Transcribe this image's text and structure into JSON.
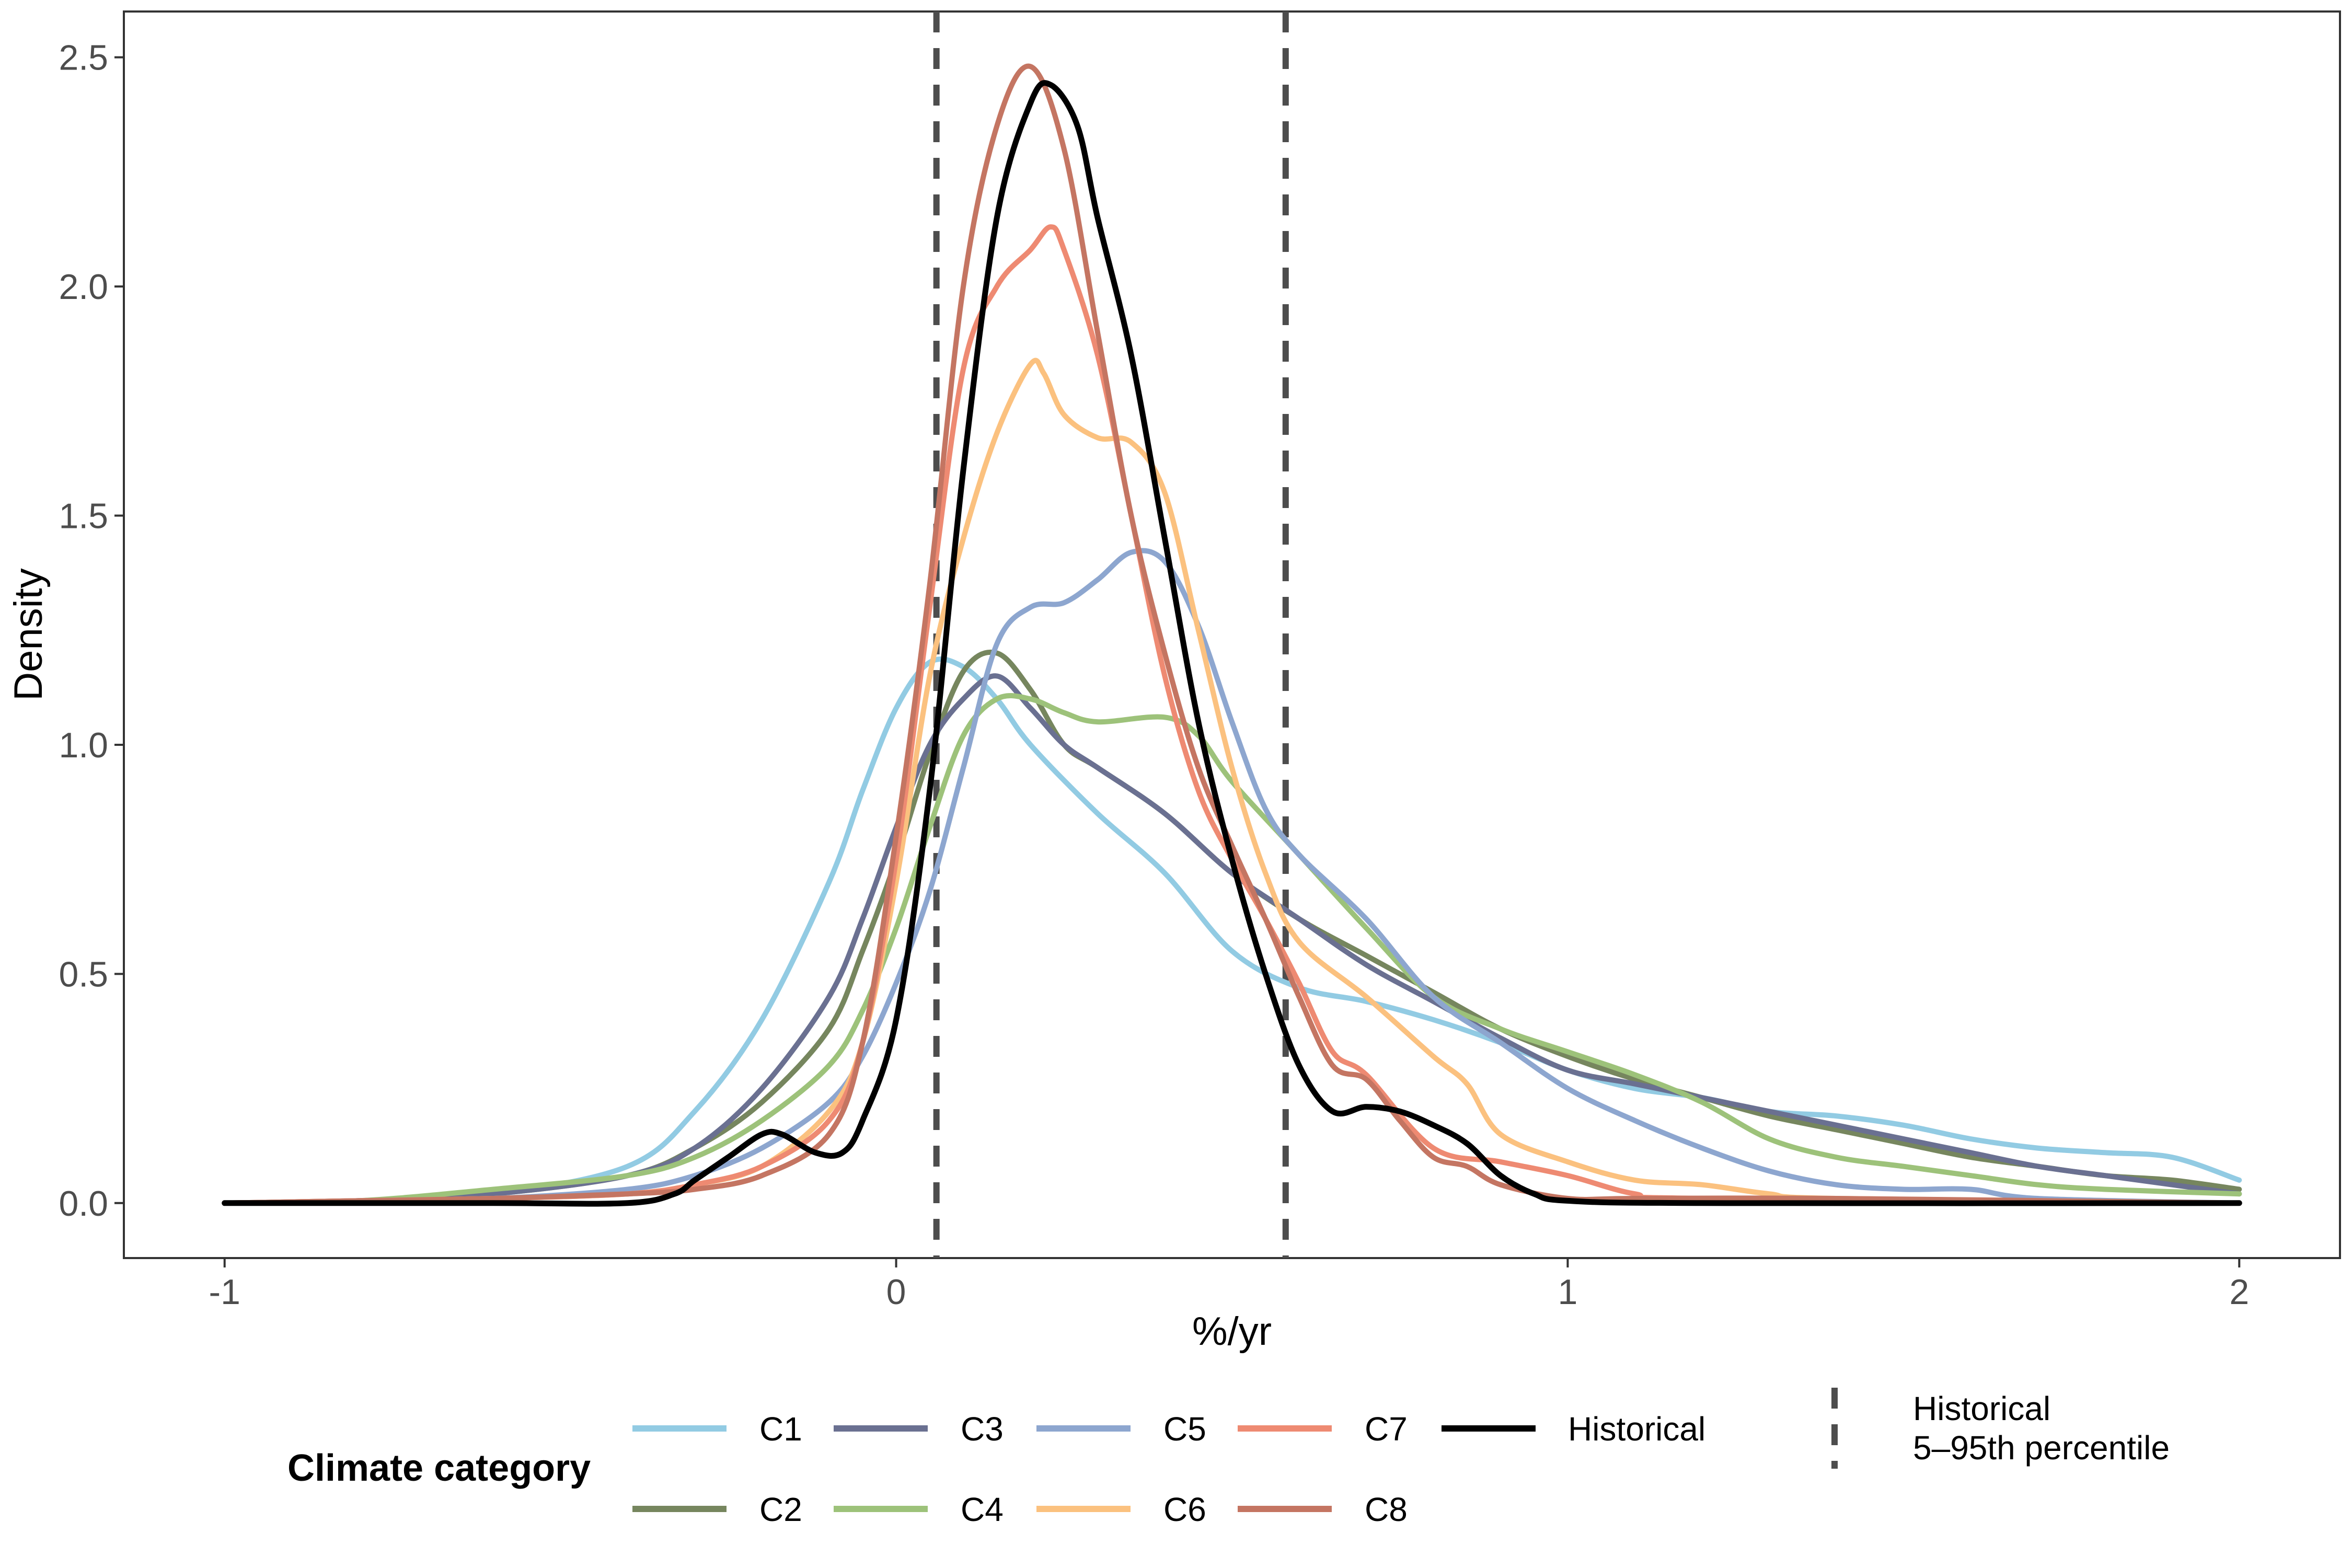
{
  "chart_data": {
    "type": "line",
    "xlabel": "%/yr",
    "ylabel": "Density",
    "xlim": [
      -1.15,
      2.15
    ],
    "ylim": [
      -0.12,
      2.6
    ],
    "x_ticks": [
      -1,
      0,
      1,
      2
    ],
    "x_tick_labels": [
      "-1",
      "0",
      "1",
      "2"
    ],
    "y_ticks": [
      0.0,
      0.5,
      1.0,
      1.5,
      2.0,
      2.5
    ],
    "y_tick_labels": [
      "0.0",
      "0.5",
      "1.0",
      "1.5",
      "2.0",
      "2.5"
    ],
    "grid": false,
    "legend": {
      "position": "bottom",
      "title": "Climate category",
      "historical_label": "Historical",
      "percentile_label_line1": "Historical",
      "percentile_label_line2": "5–95th percentile"
    },
    "reference_lines": [
      {
        "x": 0.06,
        "style": "dashed"
      },
      {
        "x": 0.58,
        "style": "dashed"
      }
    ],
    "series": [
      {
        "name": "C1",
        "color": "#92cbe3",
        "points": [
          [
            -1,
            0
          ],
          [
            -0.8,
            0.005
          ],
          [
            -0.6,
            0.02
          ],
          [
            -0.4,
            0.08
          ],
          [
            -0.3,
            0.2
          ],
          [
            -0.2,
            0.4
          ],
          [
            -0.1,
            0.7
          ],
          [
            -0.05,
            0.9
          ],
          [
            0,
            1.08
          ],
          [
            0.05,
            1.18
          ],
          [
            0.1,
            1.17
          ],
          [
            0.15,
            1.1
          ],
          [
            0.2,
            1.0
          ],
          [
            0.3,
            0.85
          ],
          [
            0.4,
            0.72
          ],
          [
            0.5,
            0.55
          ],
          [
            0.6,
            0.47
          ],
          [
            0.7,
            0.44
          ],
          [
            0.8,
            0.4
          ],
          [
            0.9,
            0.35
          ],
          [
            1.0,
            0.29
          ],
          [
            1.1,
            0.25
          ],
          [
            1.2,
            0.23
          ],
          [
            1.3,
            0.2
          ],
          [
            1.4,
            0.19
          ],
          [
            1.5,
            0.17
          ],
          [
            1.6,
            0.14
          ],
          [
            1.7,
            0.12
          ],
          [
            1.8,
            0.11
          ],
          [
            1.9,
            0.1
          ],
          [
            2.0,
            0.05
          ]
        ]
      },
      {
        "name": "C2",
        "color": "#76865e",
        "points": [
          [
            -1,
            0
          ],
          [
            -0.8,
            0.005
          ],
          [
            -0.6,
            0.02
          ],
          [
            -0.4,
            0.06
          ],
          [
            -0.3,
            0.12
          ],
          [
            -0.2,
            0.22
          ],
          [
            -0.1,
            0.38
          ],
          [
            -0.05,
            0.55
          ],
          [
            0,
            0.75
          ],
          [
            0.05,
            0.98
          ],
          [
            0.1,
            1.16
          ],
          [
            0.15,
            1.2
          ],
          [
            0.2,
            1.12
          ],
          [
            0.25,
            1.0
          ],
          [
            0.3,
            0.95
          ],
          [
            0.4,
            0.85
          ],
          [
            0.5,
            0.72
          ],
          [
            0.6,
            0.62
          ],
          [
            0.7,
            0.54
          ],
          [
            0.8,
            0.46
          ],
          [
            0.9,
            0.38
          ],
          [
            1.0,
            0.32
          ],
          [
            1.1,
            0.27
          ],
          [
            1.2,
            0.23
          ],
          [
            1.3,
            0.19
          ],
          [
            1.4,
            0.16
          ],
          [
            1.5,
            0.13
          ],
          [
            1.6,
            0.1
          ],
          [
            1.7,
            0.08
          ],
          [
            1.8,
            0.06
          ],
          [
            1.9,
            0.05
          ],
          [
            2.0,
            0.03
          ]
        ]
      },
      {
        "name": "C3",
        "color": "#6a7091",
        "points": [
          [
            -1,
            0
          ],
          [
            -0.8,
            0.005
          ],
          [
            -0.6,
            0.02
          ],
          [
            -0.4,
            0.06
          ],
          [
            -0.3,
            0.12
          ],
          [
            -0.2,
            0.25
          ],
          [
            -0.1,
            0.45
          ],
          [
            -0.05,
            0.62
          ],
          [
            0,
            0.82
          ],
          [
            0.05,
            1.0
          ],
          [
            0.1,
            1.1
          ],
          [
            0.15,
            1.15
          ],
          [
            0.2,
            1.08
          ],
          [
            0.25,
            1.0
          ],
          [
            0.3,
            0.95
          ],
          [
            0.4,
            0.85
          ],
          [
            0.5,
            0.72
          ],
          [
            0.6,
            0.62
          ],
          [
            0.7,
            0.52
          ],
          [
            0.8,
            0.44
          ],
          [
            0.9,
            0.36
          ],
          [
            1.0,
            0.29
          ],
          [
            1.1,
            0.26
          ],
          [
            1.2,
            0.23
          ],
          [
            1.3,
            0.2
          ],
          [
            1.4,
            0.17
          ],
          [
            1.5,
            0.14
          ],
          [
            1.6,
            0.11
          ],
          [
            1.7,
            0.08
          ],
          [
            1.8,
            0.06
          ],
          [
            1.9,
            0.04
          ],
          [
            2.0,
            0.02
          ]
        ]
      },
      {
        "name": "C4",
        "color": "#9dc27a",
        "points": [
          [
            -1,
            0
          ],
          [
            -0.8,
            0.005
          ],
          [
            -0.6,
            0.03
          ],
          [
            -0.4,
            0.06
          ],
          [
            -0.3,
            0.1
          ],
          [
            -0.2,
            0.18
          ],
          [
            -0.1,
            0.3
          ],
          [
            -0.05,
            0.42
          ],
          [
            0,
            0.6
          ],
          [
            0.05,
            0.82
          ],
          [
            0.1,
            1.02
          ],
          [
            0.15,
            1.1
          ],
          [
            0.2,
            1.1
          ],
          [
            0.25,
            1.07
          ],
          [
            0.3,
            1.05
          ],
          [
            0.4,
            1.06
          ],
          [
            0.45,
            1.02
          ],
          [
            0.5,
            0.92
          ],
          [
            0.6,
            0.76
          ],
          [
            0.7,
            0.6
          ],
          [
            0.8,
            0.45
          ],
          [
            0.9,
            0.38
          ],
          [
            1.0,
            0.33
          ],
          [
            1.1,
            0.28
          ],
          [
            1.2,
            0.22
          ],
          [
            1.3,
            0.14
          ],
          [
            1.4,
            0.1
          ],
          [
            1.5,
            0.08
          ],
          [
            1.6,
            0.06
          ],
          [
            1.7,
            0.04
          ],
          [
            1.8,
            0.03
          ],
          [
            2.0,
            0.02
          ]
        ]
      },
      {
        "name": "C5",
        "color": "#8da6cf",
        "points": [
          [
            -1,
            0
          ],
          [
            -0.8,
            0.005
          ],
          [
            -0.6,
            0.01
          ],
          [
            -0.4,
            0.03
          ],
          [
            -0.3,
            0.06
          ],
          [
            -0.2,
            0.12
          ],
          [
            -0.1,
            0.22
          ],
          [
            -0.05,
            0.32
          ],
          [
            0,
            0.48
          ],
          [
            0.05,
            0.68
          ],
          [
            0.1,
            0.95
          ],
          [
            0.15,
            1.22
          ],
          [
            0.2,
            1.3
          ],
          [
            0.25,
            1.31
          ],
          [
            0.3,
            1.36
          ],
          [
            0.35,
            1.42
          ],
          [
            0.4,
            1.4
          ],
          [
            0.45,
            1.26
          ],
          [
            0.5,
            1.05
          ],
          [
            0.55,
            0.86
          ],
          [
            0.6,
            0.76
          ],
          [
            0.7,
            0.62
          ],
          [
            0.8,
            0.45
          ],
          [
            0.9,
            0.35
          ],
          [
            1.0,
            0.25
          ],
          [
            1.1,
            0.18
          ],
          [
            1.2,
            0.12
          ],
          [
            1.3,
            0.07
          ],
          [
            1.4,
            0.04
          ],
          [
            1.5,
            0.03
          ],
          [
            1.6,
            0.03
          ],
          [
            1.7,
            0.01
          ],
          [
            2.0,
            0
          ]
        ]
      },
      {
        "name": "C6",
        "color": "#fbc17f",
        "points": [
          [
            -1,
            0
          ],
          [
            -0.8,
            0.005
          ],
          [
            -0.6,
            0.01
          ],
          [
            -0.4,
            0.02
          ],
          [
            -0.3,
            0.04
          ],
          [
            -0.2,
            0.08
          ],
          [
            -0.1,
            0.2
          ],
          [
            -0.05,
            0.35
          ],
          [
            0,
            0.7
          ],
          [
            0.05,
            1.15
          ],
          [
            0.1,
            1.45
          ],
          [
            0.15,
            1.68
          ],
          [
            0.2,
            1.83
          ],
          [
            0.22,
            1.81
          ],
          [
            0.25,
            1.72
          ],
          [
            0.3,
            1.67
          ],
          [
            0.35,
            1.66
          ],
          [
            0.4,
            1.55
          ],
          [
            0.45,
            1.25
          ],
          [
            0.5,
            0.95
          ],
          [
            0.55,
            0.72
          ],
          [
            0.6,
            0.57
          ],
          [
            0.7,
            0.45
          ],
          [
            0.8,
            0.32
          ],
          [
            0.85,
            0.26
          ],
          [
            0.9,
            0.15
          ],
          [
            1.0,
            0.09
          ],
          [
            1.1,
            0.05
          ],
          [
            1.2,
            0.04
          ],
          [
            1.3,
            0.02
          ],
          [
            1.4,
            0.01
          ],
          [
            2.0,
            0
          ]
        ]
      },
      {
        "name": "C7",
        "color": "#ee8a72",
        "points": [
          [
            -1,
            0
          ],
          [
            -0.8,
            0.005
          ],
          [
            -0.6,
            0.01
          ],
          [
            -0.4,
            0.02
          ],
          [
            -0.3,
            0.04
          ],
          [
            -0.2,
            0.08
          ],
          [
            -0.1,
            0.18
          ],
          [
            -0.05,
            0.35
          ],
          [
            0,
            0.75
          ],
          [
            0.05,
            1.3
          ],
          [
            0.1,
            1.82
          ],
          [
            0.15,
            2.0
          ],
          [
            0.2,
            2.08
          ],
          [
            0.23,
            2.13
          ],
          [
            0.25,
            2.08
          ],
          [
            0.3,
            1.85
          ],
          [
            0.35,
            1.5
          ],
          [
            0.4,
            1.15
          ],
          [
            0.45,
            0.9
          ],
          [
            0.5,
            0.75
          ],
          [
            0.55,
            0.62
          ],
          [
            0.6,
            0.48
          ],
          [
            0.65,
            0.33
          ],
          [
            0.7,
            0.28
          ],
          [
            0.8,
            0.12
          ],
          [
            0.9,
            0.09
          ],
          [
            1.0,
            0.06
          ],
          [
            1.1,
            0.02
          ],
          [
            1.2,
            0.01
          ],
          [
            2.0,
            0
          ]
        ]
      },
      {
        "name": "C8",
        "color": "#c47562",
        "points": [
          [
            -1,
            0
          ],
          [
            -0.8,
            0.005
          ],
          [
            -0.6,
            0.01
          ],
          [
            -0.4,
            0.02
          ],
          [
            -0.3,
            0.03
          ],
          [
            -0.2,
            0.06
          ],
          [
            -0.1,
            0.15
          ],
          [
            -0.05,
            0.35
          ],
          [
            0,
            0.8
          ],
          [
            0.05,
            1.35
          ],
          [
            0.1,
            2.0
          ],
          [
            0.15,
            2.35
          ],
          [
            0.2,
            2.48
          ],
          [
            0.25,
            2.3
          ],
          [
            0.3,
            1.9
          ],
          [
            0.35,
            1.5
          ],
          [
            0.4,
            1.2
          ],
          [
            0.45,
            0.95
          ],
          [
            0.5,
            0.78
          ],
          [
            0.55,
            0.62
          ],
          [
            0.6,
            0.45
          ],
          [
            0.65,
            0.3
          ],
          [
            0.7,
            0.27
          ],
          [
            0.75,
            0.18
          ],
          [
            0.8,
            0.1
          ],
          [
            0.85,
            0.08
          ],
          [
            0.9,
            0.04
          ],
          [
            1.0,
            0.01
          ],
          [
            1.1,
            0.01
          ],
          [
            1.4,
            0.01
          ],
          [
            2.0,
            0
          ]
        ]
      },
      {
        "name": "Historical",
        "color": "#000000",
        "points": [
          [
            -1,
            0
          ],
          [
            -0.6,
            0
          ],
          [
            -0.4,
            0
          ],
          [
            -0.33,
            0.02
          ],
          [
            -0.3,
            0.05
          ],
          [
            -0.25,
            0.1
          ],
          [
            -0.2,
            0.15
          ],
          [
            -0.17,
            0.15
          ],
          [
            -0.12,
            0.11
          ],
          [
            -0.08,
            0.11
          ],
          [
            -0.05,
            0.18
          ],
          [
            0,
            0.4
          ],
          [
            0.05,
            0.9
          ],
          [
            0.1,
            1.6
          ],
          [
            0.15,
            2.15
          ],
          [
            0.2,
            2.4
          ],
          [
            0.23,
            2.44
          ],
          [
            0.27,
            2.35
          ],
          [
            0.3,
            2.15
          ],
          [
            0.35,
            1.85
          ],
          [
            0.4,
            1.45
          ],
          [
            0.45,
            1.05
          ],
          [
            0.5,
            0.75
          ],
          [
            0.55,
            0.5
          ],
          [
            0.6,
            0.3
          ],
          [
            0.65,
            0.2
          ],
          [
            0.7,
            0.21
          ],
          [
            0.75,
            0.2
          ],
          [
            0.8,
            0.17
          ],
          [
            0.85,
            0.13
          ],
          [
            0.9,
            0.06
          ],
          [
            0.95,
            0.02
          ],
          [
            1.0,
            0.005
          ],
          [
            1.2,
            0
          ],
          [
            2.0,
            0
          ]
        ]
      }
    ]
  }
}
